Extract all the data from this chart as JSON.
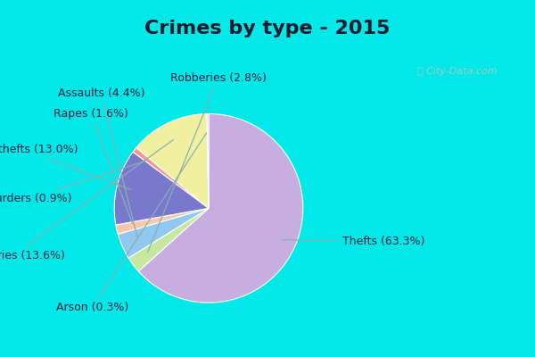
{
  "title": "Crimes by type - 2015",
  "labels": [
    "Thefts",
    "Robberies",
    "Assaults",
    "Rapes",
    "Auto thefts",
    "Murders",
    "Burglaries",
    "Arson"
  ],
  "values": [
    63.3,
    2.8,
    4.4,
    1.6,
    13.0,
    0.9,
    13.6,
    0.3
  ],
  "colors": [
    "#c8aee0",
    "#c8e8a0",
    "#90c8f0",
    "#f8c8a8",
    "#7878cc",
    "#f09898",
    "#f0f0a0",
    "#d0d8c8"
  ],
  "background_border": "#00e8e8",
  "background_main": "#e0ede0",
  "title_fontsize": 16,
  "label_fontsize": 9,
  "startangle": 90
}
